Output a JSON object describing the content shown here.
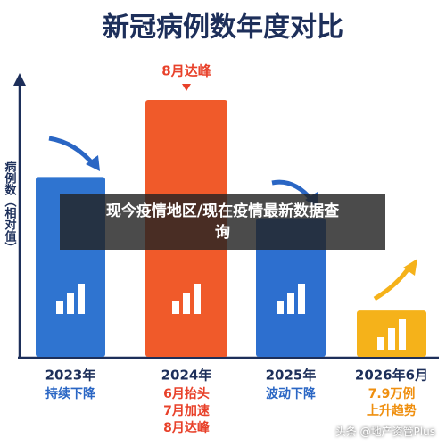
{
  "chart_data": {
    "type": "bar",
    "title": "新冠病例数年度对比",
    "y_label": "病例数（相对值）",
    "annotation": "8月达峰",
    "categories": [
      "2023年",
      "2024年",
      "2025年",
      "2026年6月"
    ],
    "sublabels": [
      [
        "持续下降"
      ],
      [
        "6月抬头",
        "7月加速",
        "8月达峰"
      ],
      [
        "波动下降"
      ],
      [
        "7.9万例",
        "上升趋势"
      ]
    ],
    "sublabel_colors": [
      "#2a66c4",
      "#e8412a",
      "#2a66c4",
      "#ef8f0f"
    ],
    "values": [
      70,
      100,
      54,
      18
    ],
    "colors": [
      "#2f74d0",
      "#f05a2a",
      "#2d6fcf",
      "#f5b21a"
    ],
    "ylim": [
      0,
      100
    ]
  },
  "overlay": {
    "banner": [
      "现今疫情地区/现在疫情最新数据查",
      "询"
    ],
    "watermark": "头条 @地产资管Plus"
  }
}
